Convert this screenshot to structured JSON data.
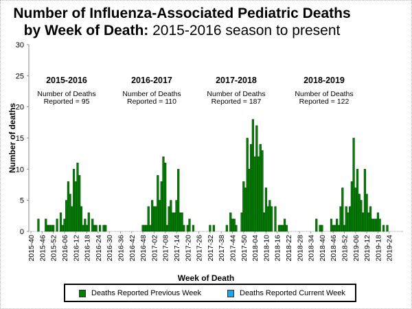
{
  "title_line1": "Number of Influenza-Associated Pediatric Deaths",
  "title_line2_bold": "by Week of Death:",
  "title_line2_rest": " 2015-2016 season to present",
  "chart_data": {
    "type": "bar",
    "xlabel": "Week of Death",
    "ylabel": "Number of deaths",
    "ylim": [
      0,
      30
    ],
    "yticks": [
      0,
      5,
      10,
      15,
      20,
      25,
      30
    ],
    "x_range": [
      "2015-40",
      "2019-24"
    ],
    "weeks_per_year": 52,
    "xticks": [
      "2015-40",
      "2015-46",
      "2015-52",
      "2016-06",
      "2016-12",
      "2016-18",
      "2016-24",
      "2016-30",
      "2016-36",
      "2016-42",
      "2016-48",
      "2017-02",
      "2017-08",
      "2017-14",
      "2017-20",
      "2017-26",
      "2017-32",
      "2017-38",
      "2017-44",
      "2017-50",
      "2018-04",
      "2018-10",
      "2018-16",
      "2018-22",
      "2018-28",
      "2018-34",
      "2018-40",
      "2018-46",
      "2018-52",
      "2019-06",
      "2019-12",
      "2019-18",
      "2019-24"
    ],
    "grid": false,
    "legend_position": "bottom",
    "series": [
      {
        "name": "Deaths Reported Previous Week",
        "color": "#008000",
        "points": [
          [
            "2015-44",
            2
          ],
          [
            "2015-48",
            2
          ],
          [
            "2015-49",
            1
          ],
          [
            "2015-50",
            1
          ],
          [
            "2015-51",
            1
          ],
          [
            "2015-52",
            1
          ],
          [
            "2016-02",
            2
          ],
          [
            "2016-04",
            3
          ],
          [
            "2016-05",
            1
          ],
          [
            "2016-06",
            2
          ],
          [
            "2016-07",
            5
          ],
          [
            "2016-08",
            8
          ],
          [
            "2016-09",
            6
          ],
          [
            "2016-10",
            4
          ],
          [
            "2016-11",
            10
          ],
          [
            "2016-12",
            8
          ],
          [
            "2016-13",
            11
          ],
          [
            "2016-14",
            9
          ],
          [
            "2016-15",
            4
          ],
          [
            "2016-16",
            1
          ],
          [
            "2016-17",
            2
          ],
          [
            "2016-18",
            1
          ],
          [
            "2016-19",
            3
          ],
          [
            "2016-21",
            2
          ],
          [
            "2016-22",
            1
          ],
          [
            "2016-23",
            1
          ],
          [
            "2016-25",
            1
          ],
          [
            "2016-27",
            1
          ],
          [
            "2016-28",
            1
          ],
          [
            "2016-48",
            1
          ],
          [
            "2016-49",
            1
          ],
          [
            "2016-50",
            1
          ],
          [
            "2016-51",
            4
          ],
          [
            "2016-52",
            1
          ],
          [
            "2017-01",
            5
          ],
          [
            "2017-02",
            4
          ],
          [
            "2017-03",
            4
          ],
          [
            "2017-04",
            9
          ],
          [
            "2017-05",
            5
          ],
          [
            "2017-06",
            8
          ],
          [
            "2017-07",
            12
          ],
          [
            "2017-08",
            11
          ],
          [
            "2017-09",
            1
          ],
          [
            "2017-10",
            4
          ],
          [
            "2017-11",
            5
          ],
          [
            "2017-12",
            3
          ],
          [
            "2017-13",
            3
          ],
          [
            "2017-14",
            5
          ],
          [
            "2017-15",
            10
          ],
          [
            "2017-16",
            3
          ],
          [
            "2017-17",
            3
          ],
          [
            "2017-18",
            1
          ],
          [
            "2017-20",
            1
          ],
          [
            "2017-21",
            2
          ],
          [
            "2017-23",
            1
          ],
          [
            "2017-32",
            1
          ],
          [
            "2017-34",
            1
          ],
          [
            "2017-41",
            1
          ],
          [
            "2017-43",
            3
          ],
          [
            "2017-44",
            2
          ],
          [
            "2017-45",
            2
          ],
          [
            "2017-46",
            1
          ],
          [
            "2017-49",
            3
          ],
          [
            "2017-50",
            8
          ],
          [
            "2017-51",
            7
          ],
          [
            "2017-52",
            15
          ],
          [
            "2018-01",
            10
          ],
          [
            "2018-02",
            14
          ],
          [
            "2018-03",
            18
          ],
          [
            "2018-04",
            12
          ],
          [
            "2018-05",
            17
          ],
          [
            "2018-06",
            12
          ],
          [
            "2018-07",
            14
          ],
          [
            "2018-08",
            13
          ],
          [
            "2018-09",
            3
          ],
          [
            "2018-10",
            7
          ],
          [
            "2018-11",
            4
          ],
          [
            "2018-12",
            5
          ],
          [
            "2018-13",
            4
          ],
          [
            "2018-15",
            4
          ],
          [
            "2018-17",
            1
          ],
          [
            "2018-18",
            1
          ],
          [
            "2018-19",
            1
          ],
          [
            "2018-20",
            2
          ],
          [
            "2018-21",
            1
          ],
          [
            "2018-37",
            2
          ],
          [
            "2018-39",
            1
          ],
          [
            "2018-40",
            1
          ],
          [
            "2018-45",
            2
          ],
          [
            "2018-46",
            1
          ],
          [
            "2018-47",
            1
          ],
          [
            "2018-48",
            2
          ],
          [
            "2018-49",
            1
          ],
          [
            "2018-50",
            4
          ],
          [
            "2018-51",
            7
          ],
          [
            "2018-52",
            1
          ],
          [
            "2019-01",
            4
          ],
          [
            "2019-02",
            3
          ],
          [
            "2019-03",
            4
          ],
          [
            "2019-04",
            8
          ],
          [
            "2019-05",
            15
          ],
          [
            "2019-06",
            7
          ],
          [
            "2019-07",
            10
          ],
          [
            "2019-08",
            6
          ],
          [
            "2019-09",
            5
          ],
          [
            "2019-10",
            3
          ],
          [
            "2019-11",
            10
          ],
          [
            "2019-12",
            6
          ],
          [
            "2019-13",
            3
          ],
          [
            "2019-14",
            4
          ],
          [
            "2019-15",
            2
          ],
          [
            "2019-16",
            2
          ],
          [
            "2019-17",
            2
          ],
          [
            "2019-18",
            3
          ],
          [
            "2019-19",
            2
          ],
          [
            "2019-21",
            1
          ],
          [
            "2019-23",
            1
          ]
        ]
      },
      {
        "name": "Deaths Reported Current Week",
        "color": "#1ea7e8",
        "points": []
      }
    ],
    "annotations": [
      {
        "season": "2015-2016",
        "line1": "Number of Deaths",
        "line2": "Reported = 95"
      },
      {
        "season": "2016-2017",
        "line1": "Number of Deaths",
        "line2": "Reported = 110"
      },
      {
        "season": "2017-2018",
        "line1": "Number of Deaths",
        "line2": "Reported = 187"
      },
      {
        "season": "2018-2019",
        "line1": "Number of Deaths",
        "line2": "Reported = 122"
      }
    ]
  }
}
